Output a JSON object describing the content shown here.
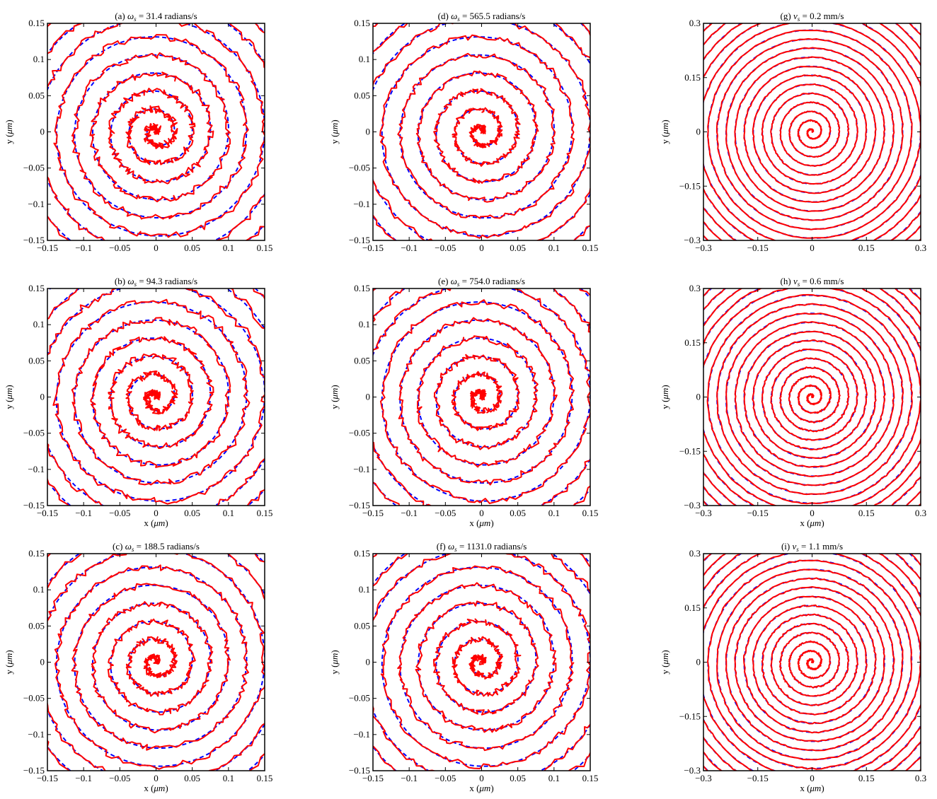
{
  "figure": {
    "colors": {
      "reference": "#0000ff",
      "measured": "#ff0000",
      "axis": "#000000"
    }
  },
  "chart_data": [
    {
      "id": "a",
      "type": "line",
      "title_prefix": "(a)",
      "title_symbol": "ω",
      "title_sub": "s",
      "title_value": "= 31.4 radians/s",
      "xlabel_var": "x",
      "ylabel_var": "y",
      "unit": "μm",
      "xlim": [
        -0.15,
        0.15
      ],
      "ylim": [
        -0.15,
        0.15
      ],
      "xticks": [
        "−0.15",
        "−0.1",
        "−0.05",
        "0",
        "0.05",
        "0.1",
        "0.15"
      ],
      "yticks": [
        "−0.15",
        "−0.1",
        "−0.05",
        "0",
        "0.05",
        "0.1",
        "0.15"
      ],
      "show_xlabel": false,
      "spiral_pitch": 0.025,
      "noise": 0.0045,
      "series": [
        {
          "style": "dashed"
        },
        {
          "style": "solid"
        }
      ]
    },
    {
      "id": "b",
      "type": "line",
      "title_prefix": "(b)",
      "title_symbol": "ω",
      "title_sub": "s",
      "title_value": "= 94.3 radians/s",
      "xlabel_var": "x",
      "ylabel_var": "y",
      "unit": "μm",
      "xlim": [
        -0.15,
        0.15
      ],
      "ylim": [
        -0.15,
        0.15
      ],
      "xticks": [
        "−0.15",
        "−0.1",
        "−0.05",
        "0",
        "0.05",
        "0.1",
        "0.15"
      ],
      "yticks": [
        "−0.15",
        "−0.1",
        "−0.05",
        "0",
        "0.05",
        "0.1",
        "0.15"
      ],
      "show_xlabel": true,
      "spiral_pitch": 0.025,
      "noise": 0.0045,
      "series": [
        {
          "style": "dashed"
        },
        {
          "style": "solid"
        }
      ]
    },
    {
      "id": "c",
      "type": "line",
      "title_prefix": "(c)",
      "title_symbol": "ω",
      "title_sub": "s",
      "title_value": "= 188.5 radians/s",
      "xlabel_var": "x",
      "ylabel_var": "y",
      "unit": "μm",
      "xlim": [
        -0.15,
        0.15
      ],
      "ylim": [
        -0.15,
        0.15
      ],
      "xticks": [
        "−0.15",
        "−0.1",
        "−0.05",
        "0",
        "0.05",
        "0.1",
        "0.15"
      ],
      "yticks": [
        "−0.15",
        "−0.1",
        "−0.05",
        "0",
        "0.05",
        "0.1",
        "0.15"
      ],
      "show_xlabel": true,
      "spiral_pitch": 0.025,
      "noise": 0.004,
      "series": [
        {
          "style": "dashed"
        },
        {
          "style": "solid"
        }
      ]
    },
    {
      "id": "d",
      "type": "line",
      "title_prefix": "(d)",
      "title_symbol": "ω",
      "title_sub": "s",
      "title_value": "= 565.5 radians/s",
      "xlabel_var": "x",
      "ylabel_var": "y",
      "unit": "μm",
      "xlim": [
        -0.15,
        0.15
      ],
      "ylim": [
        -0.15,
        0.15
      ],
      "xticks": [
        "−0.15",
        "−0.1",
        "−0.05",
        "0",
        "0.05",
        "0.1",
        "0.15"
      ],
      "yticks": [
        "−0.15",
        "−0.1",
        "−0.05",
        "0",
        "0.05",
        "0.1",
        "0.15"
      ],
      "show_xlabel": false,
      "spiral_pitch": 0.025,
      "noise": 0.0035,
      "series": [
        {
          "style": "dashed"
        },
        {
          "style": "solid"
        }
      ]
    },
    {
      "id": "e",
      "type": "line",
      "title_prefix": "(e)",
      "title_symbol": "ω",
      "title_sub": "s",
      "title_value": "= 754.0 radians/s",
      "xlabel_var": "x",
      "ylabel_var": "y",
      "unit": "μm",
      "xlim": [
        -0.15,
        0.15
      ],
      "ylim": [
        -0.15,
        0.15
      ],
      "xticks": [
        "−0.15",
        "−0.1",
        "−0.05",
        "0",
        "0.05",
        "0.1",
        "0.15"
      ],
      "yticks": [
        "−0.15",
        "−0.1",
        "−0.05",
        "0",
        "0.05",
        "0.1",
        "0.15"
      ],
      "show_xlabel": true,
      "spiral_pitch": 0.025,
      "noise": 0.004,
      "series": [
        {
          "style": "dashed"
        },
        {
          "style": "solid"
        }
      ]
    },
    {
      "id": "f",
      "type": "line",
      "title_prefix": "(f)",
      "title_symbol": "ω",
      "title_sub": "s",
      "title_value": "= 1131.0 radians/s",
      "xlabel_var": "x",
      "ylabel_var": "y",
      "unit": "μm",
      "xlim": [
        -0.15,
        0.15
      ],
      "ylim": [
        -0.15,
        0.15
      ],
      "xticks": [
        "−0.15",
        "−0.1",
        "−0.05",
        "0",
        "0.05",
        "0.1",
        "0.15"
      ],
      "yticks": [
        "−0.15",
        "−0.1",
        "−0.05",
        "0",
        "0.05",
        "0.1",
        "0.15"
      ],
      "show_xlabel": true,
      "spiral_pitch": 0.025,
      "noise": 0.004,
      "series": [
        {
          "style": "dashed"
        },
        {
          "style": "solid"
        }
      ]
    },
    {
      "id": "g",
      "type": "line",
      "title_prefix": "(g)",
      "title_symbol": "v",
      "title_sub": "s",
      "title_value": "= 0.2 mm/s",
      "xlabel_var": "x",
      "ylabel_var": "y",
      "unit": "μm",
      "xlim": [
        -0.3,
        0.3
      ],
      "ylim": [
        -0.3,
        0.3
      ],
      "xticks": [
        "−0.3",
        "−0.15",
        "0",
        "0.15",
        "0.3"
      ],
      "yticks": [
        "−0.3",
        "−0.15",
        "0",
        "0.15",
        "0.3"
      ],
      "show_xlabel": false,
      "spiral_pitch": 0.025,
      "noise": 0.0015,
      "series": [
        {
          "style": "dashed"
        },
        {
          "style": "solid"
        }
      ]
    },
    {
      "id": "h",
      "type": "line",
      "title_prefix": "(h)",
      "title_symbol": "v",
      "title_sub": "s",
      "title_value": "= 0.6 mm/s",
      "xlabel_var": "x",
      "ylabel_var": "y",
      "unit": "μm",
      "xlim": [
        -0.3,
        0.3
      ],
      "ylim": [
        -0.3,
        0.3
      ],
      "xticks": [
        "−0.3",
        "−0.15",
        "0",
        "0.15",
        "0.3"
      ],
      "yticks": [
        "−0.3",
        "−0.15",
        "0",
        "0.15",
        "0.3"
      ],
      "show_xlabel": true,
      "spiral_pitch": 0.025,
      "noise": 0.002,
      "series": [
        {
          "style": "dashed"
        },
        {
          "style": "solid"
        }
      ]
    },
    {
      "id": "i",
      "type": "line",
      "title_prefix": "(i)",
      "title_symbol": "v",
      "title_sub": "s",
      "title_value": "= 1.1 mm/s",
      "xlabel_var": "x",
      "ylabel_var": "y",
      "unit": "μm",
      "xlim": [
        -0.3,
        0.3
      ],
      "ylim": [
        -0.3,
        0.3
      ],
      "xticks": [
        "−0.3",
        "−0.15",
        "0",
        "0.15",
        "0.3"
      ],
      "yticks": [
        "−0.3",
        "−0.15",
        "0",
        "0.15",
        "0.3"
      ],
      "show_xlabel": true,
      "spiral_pitch": 0.025,
      "noise": 0.002,
      "series": [
        {
          "style": "dashed"
        },
        {
          "style": "solid"
        }
      ]
    }
  ]
}
